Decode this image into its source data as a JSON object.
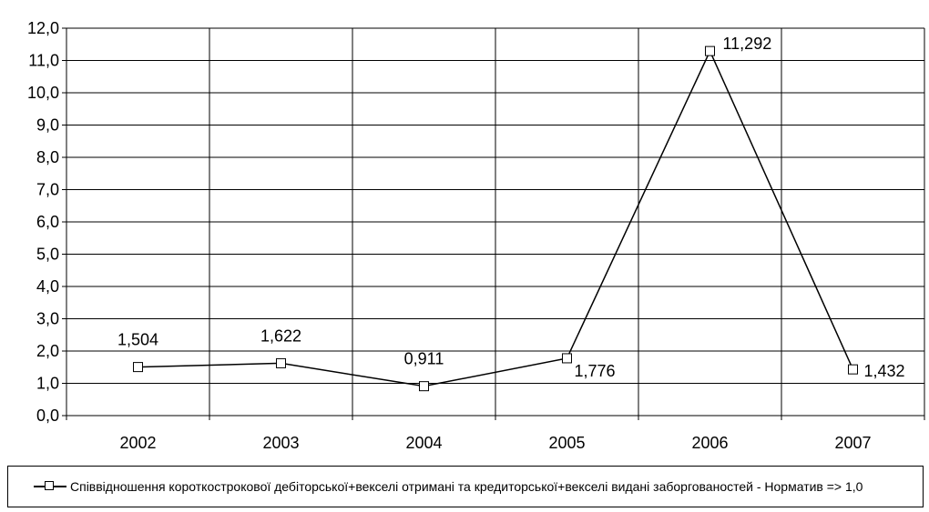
{
  "chart_data": {
    "type": "line",
    "categories": [
      "2002",
      "2003",
      "2004",
      "2005",
      "2006",
      "2007"
    ],
    "series": [
      {
        "name": "Співвідношення короткострокової дебіторської+векселі отримані та кредиторської+векселі видані заборгованостей - Норматив => 1,0",
        "values": [
          1.504,
          1.622,
          0.911,
          1.776,
          11.292,
          1.432
        ],
        "labels": [
          "1,504",
          "1,622",
          "0,911",
          "1,776",
          "11,292",
          "1,432"
        ],
        "color": "#000000"
      }
    ],
    "y_ticks": [
      "0,0",
      "1,0",
      "2,0",
      "3,0",
      "4,0",
      "5,0",
      "6,0",
      "7,0",
      "8,0",
      "9,0",
      "10,0",
      "11,0",
      "12,0"
    ],
    "ylim": [
      0,
      12
    ],
    "grid": true,
    "legend_position": "bottom",
    "marker": "hollow-square"
  }
}
